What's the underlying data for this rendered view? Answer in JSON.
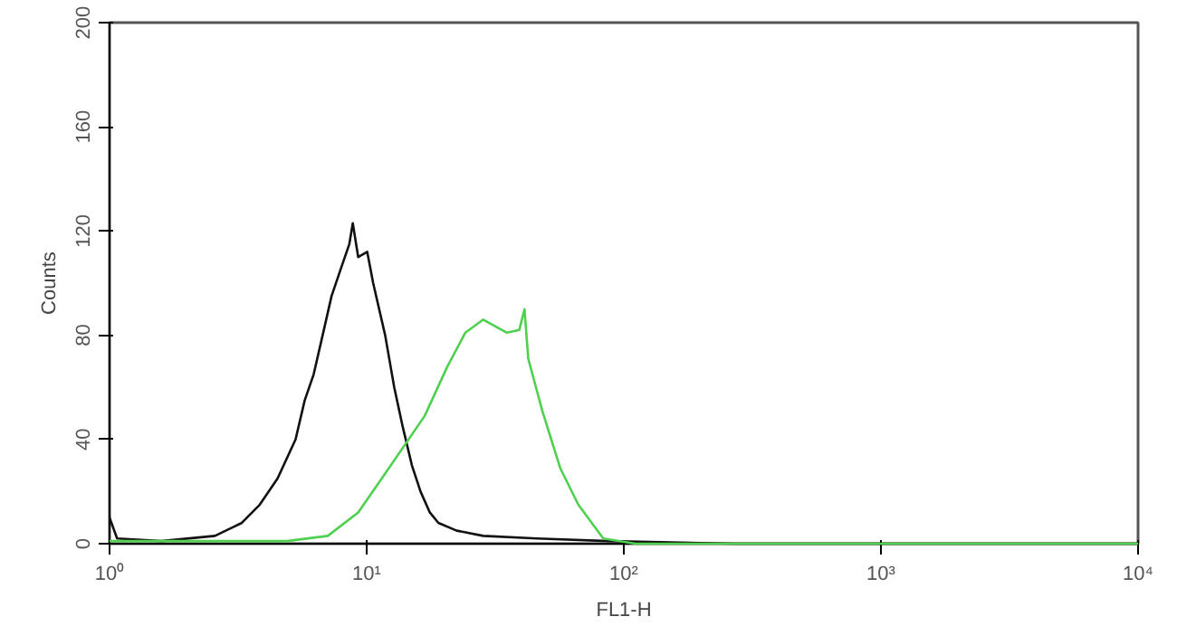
{
  "chart_data": {
    "type": "line",
    "xlabel": "FL1-H",
    "ylabel": "Counts",
    "log": "x",
    "grid": false,
    "marker": "none",
    "line_style": "solid",
    "xlim": [
      1,
      10000
    ],
    "ylim": [
      0,
      200
    ],
    "xticks": [
      {
        "value": 1,
        "label": "10⁰"
      },
      {
        "value": 10,
        "label": "10¹"
      },
      {
        "value": 100,
        "label": "10²"
      },
      {
        "value": 1000,
        "label": "10³"
      },
      {
        "value": 10000,
        "label": "10⁴"
      }
    ],
    "yticks": [
      0,
      40,
      80,
      120,
      160,
      200
    ],
    "series": [
      {
        "color": "#111111",
        "x": [
          1,
          1.07,
          1.59,
          2.57,
          3.27,
          3.84,
          4.5,
          5.29,
          5.74,
          6.22,
          6.74,
          7.3,
          7.9,
          8.56,
          8.83,
          9.27,
          10.05,
          10.6,
          11.8,
          12.8,
          13.8,
          15,
          16.2,
          17.6,
          19,
          22.4,
          28.4,
          46,
          87,
          268,
          10000
        ],
        "values": [
          10,
          2,
          1,
          3,
          8,
          15,
          25,
          40,
          55,
          65,
          80,
          95,
          105,
          115,
          123,
          110,
          112,
          100,
          80,
          60,
          45,
          30,
          20,
          12,
          8,
          5,
          3,
          2,
          1,
          0,
          0
        ]
      },
      {
        "color": "#4fd04f",
        "x": [
          1,
          2,
          3,
          4.9,
          7.06,
          9.27,
          12.2,
          16.8,
          20.6,
          24.2,
          28.4,
          35,
          39.2,
          41.1,
          42.5,
          48.2,
          56.6,
          66.5,
          83.2,
          111,
          269,
          10000
        ],
        "values": [
          1,
          1,
          1,
          1,
          3,
          12,
          29,
          49,
          68,
          81,
          86,
          81,
          82,
          90,
          71,
          51,
          29,
          15,
          2,
          0,
          0,
          0
        ]
      }
    ]
  }
}
